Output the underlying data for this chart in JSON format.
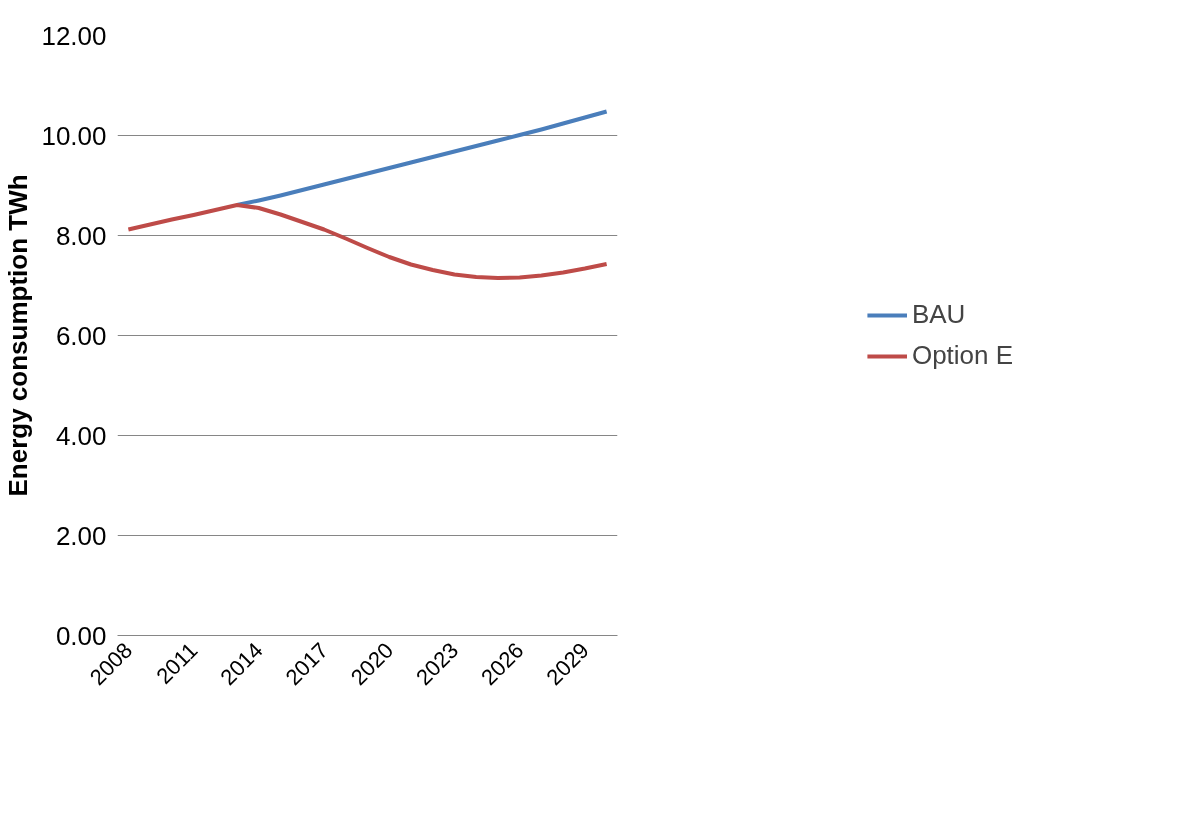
{
  "chart_data": {
    "type": "line",
    "ylabel": "Energy consumption TWh",
    "categories": [
      "2008",
      null,
      null,
      "2011",
      null,
      null,
      "2014",
      null,
      null,
      "2017",
      null,
      null,
      "2020",
      null,
      null,
      "2023",
      null,
      null,
      "2026",
      null,
      null,
      "2029",
      null
    ],
    "series": [
      {
        "name": "BAU",
        "color": "#4a7ebb",
        "values": [
          null,
          null,
          null,
          null,
          null,
          8.61,
          8.7,
          8.8,
          8.91,
          9.02,
          9.13,
          9.24,
          9.35,
          9.46,
          9.57,
          9.68,
          9.79,
          9.9,
          10.01,
          10.12,
          10.24,
          10.36,
          10.48
        ]
      },
      {
        "name": "Option E",
        "color": "#be4b48",
        "values": [
          8.12,
          8.22,
          8.32,
          8.41,
          8.51,
          8.61,
          8.55,
          8.42,
          8.27,
          8.12,
          7.94,
          7.75,
          7.57,
          7.42,
          7.31,
          7.22,
          7.17,
          7.15,
          7.16,
          7.2,
          7.26,
          7.34,
          7.43
        ]
      }
    ],
    "ylim": [
      0,
      12
    ],
    "yticks": [
      {
        "value": 0,
        "label": "0.00"
      },
      {
        "value": 2,
        "label": "2.00"
      },
      {
        "value": 4,
        "label": "4.00"
      },
      {
        "value": 6,
        "label": "6.00"
      },
      {
        "value": 8,
        "label": "8.00"
      },
      {
        "value": 10,
        "label": "10.00"
      },
      {
        "value": 12,
        "label": "12.00"
      }
    ],
    "grid": "y",
    "legend": "right",
    "marker": "none",
    "line_style": "solid"
  }
}
